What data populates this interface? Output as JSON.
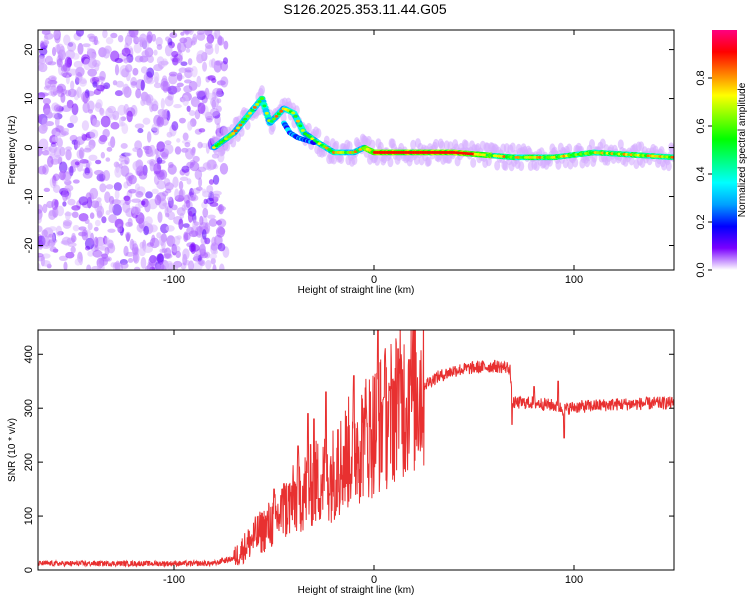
{
  "title": "S126.2025.353.11.44.G05",
  "charts": [
    {
      "type": "heatmap",
      "xlabel": "Height of straight line (km)",
      "ylabel": "Frequency (Hz)",
      "xlim": [
        -168,
        150
      ],
      "ylim": [
        -25,
        24
      ],
      "xticks": [
        -100,
        0,
        100
      ],
      "yticks": [
        -20,
        -10,
        0,
        10,
        20
      ],
      "colorbar": {
        "label": "Normalized spectral amplitude",
        "range": [
          0,
          1
        ],
        "ticks": [
          0.0,
          0.2,
          0.4,
          0.6,
          0.8
        ],
        "tick_labels": [
          "0.0",
          "0.2",
          "0.4",
          "0.6",
          "0.8"
        ],
        "colormap": [
          "#ffffff",
          "#7a00ff",
          "#0000ff",
          "#00a0ff",
          "#00ffff",
          "#00ff80",
          "#00ff00",
          "#80ff00",
          "#ffff00",
          "#ff8000",
          "#ff0000",
          "#ff0080"
        ]
      },
      "trace_main": [
        [
          -80,
          0
        ],
        [
          -70,
          3
        ],
        [
          -60,
          8
        ],
        [
          -56,
          10
        ],
        [
          -52,
          5
        ],
        [
          -45,
          8
        ],
        [
          -40,
          7
        ],
        [
          -35,
          3
        ],
        [
          -28,
          1
        ],
        [
          -20,
          -1
        ],
        [
          -10,
          -1
        ],
        [
          -5,
          0
        ],
        [
          0,
          -1
        ],
        [
          10,
          -1
        ],
        [
          40,
          -1
        ],
        [
          70,
          -2
        ],
        [
          90,
          -2
        ],
        [
          110,
          -1
        ],
        [
          150,
          -2
        ]
      ],
      "trace_secondary": [
        [
          -45,
          5
        ],
        [
          -42,
          3
        ],
        [
          -38,
          2
        ],
        [
          -30,
          1
        ]
      ],
      "noise_region": [
        -168,
        -80
      ]
    },
    {
      "type": "line",
      "xlabel": "Height of straight line (km)",
      "ylabel": "SNR (10 * v/v)",
      "xlim": [
        -168,
        150
      ],
      "ylim": [
        0,
        445
      ],
      "xticks": [
        -100,
        0,
        100
      ],
      "yticks": [
        0,
        100,
        200,
        300,
        400
      ],
      "line_color": "#e83030",
      "envelope": [
        [
          -168,
          12
        ],
        [
          -80,
          12
        ],
        [
          -70,
          22
        ],
        [
          -60,
          60
        ],
        [
          -50,
          90
        ],
        [
          -40,
          130
        ],
        [
          -30,
          160
        ],
        [
          -20,
          180
        ],
        [
          -10,
          230
        ],
        [
          0,
          260
        ],
        [
          10,
          300
        ],
        [
          20,
          330
        ],
        [
          30,
          355
        ],
        [
          40,
          370
        ],
        [
          50,
          375
        ],
        [
          60,
          378
        ],
        [
          68,
          375
        ],
        [
          69,
          310
        ],
        [
          80,
          310
        ],
        [
          90,
          305
        ],
        [
          95,
          298
        ],
        [
          100,
          302
        ],
        [
          120,
          307
        ],
        [
          150,
          310
        ]
      ],
      "spikes": [
        [
          -76,
          22
        ],
        [
          -50,
          150
        ],
        [
          -45,
          160
        ],
        [
          -38,
          230
        ],
        [
          -33,
          290
        ],
        [
          -30,
          280
        ],
        [
          -24,
          330
        ],
        [
          -18,
          260
        ],
        [
          -10,
          360
        ],
        [
          -5,
          300
        ],
        [
          2,
          445
        ],
        [
          5,
          320
        ],
        [
          8,
          340
        ],
        [
          12,
          410
        ],
        [
          16,
          300
        ],
        [
          18,
          390
        ],
        [
          69,
          270
        ],
        [
          80,
          340
        ],
        [
          92,
          350
        ],
        [
          95,
          245
        ]
      ]
    }
  ]
}
